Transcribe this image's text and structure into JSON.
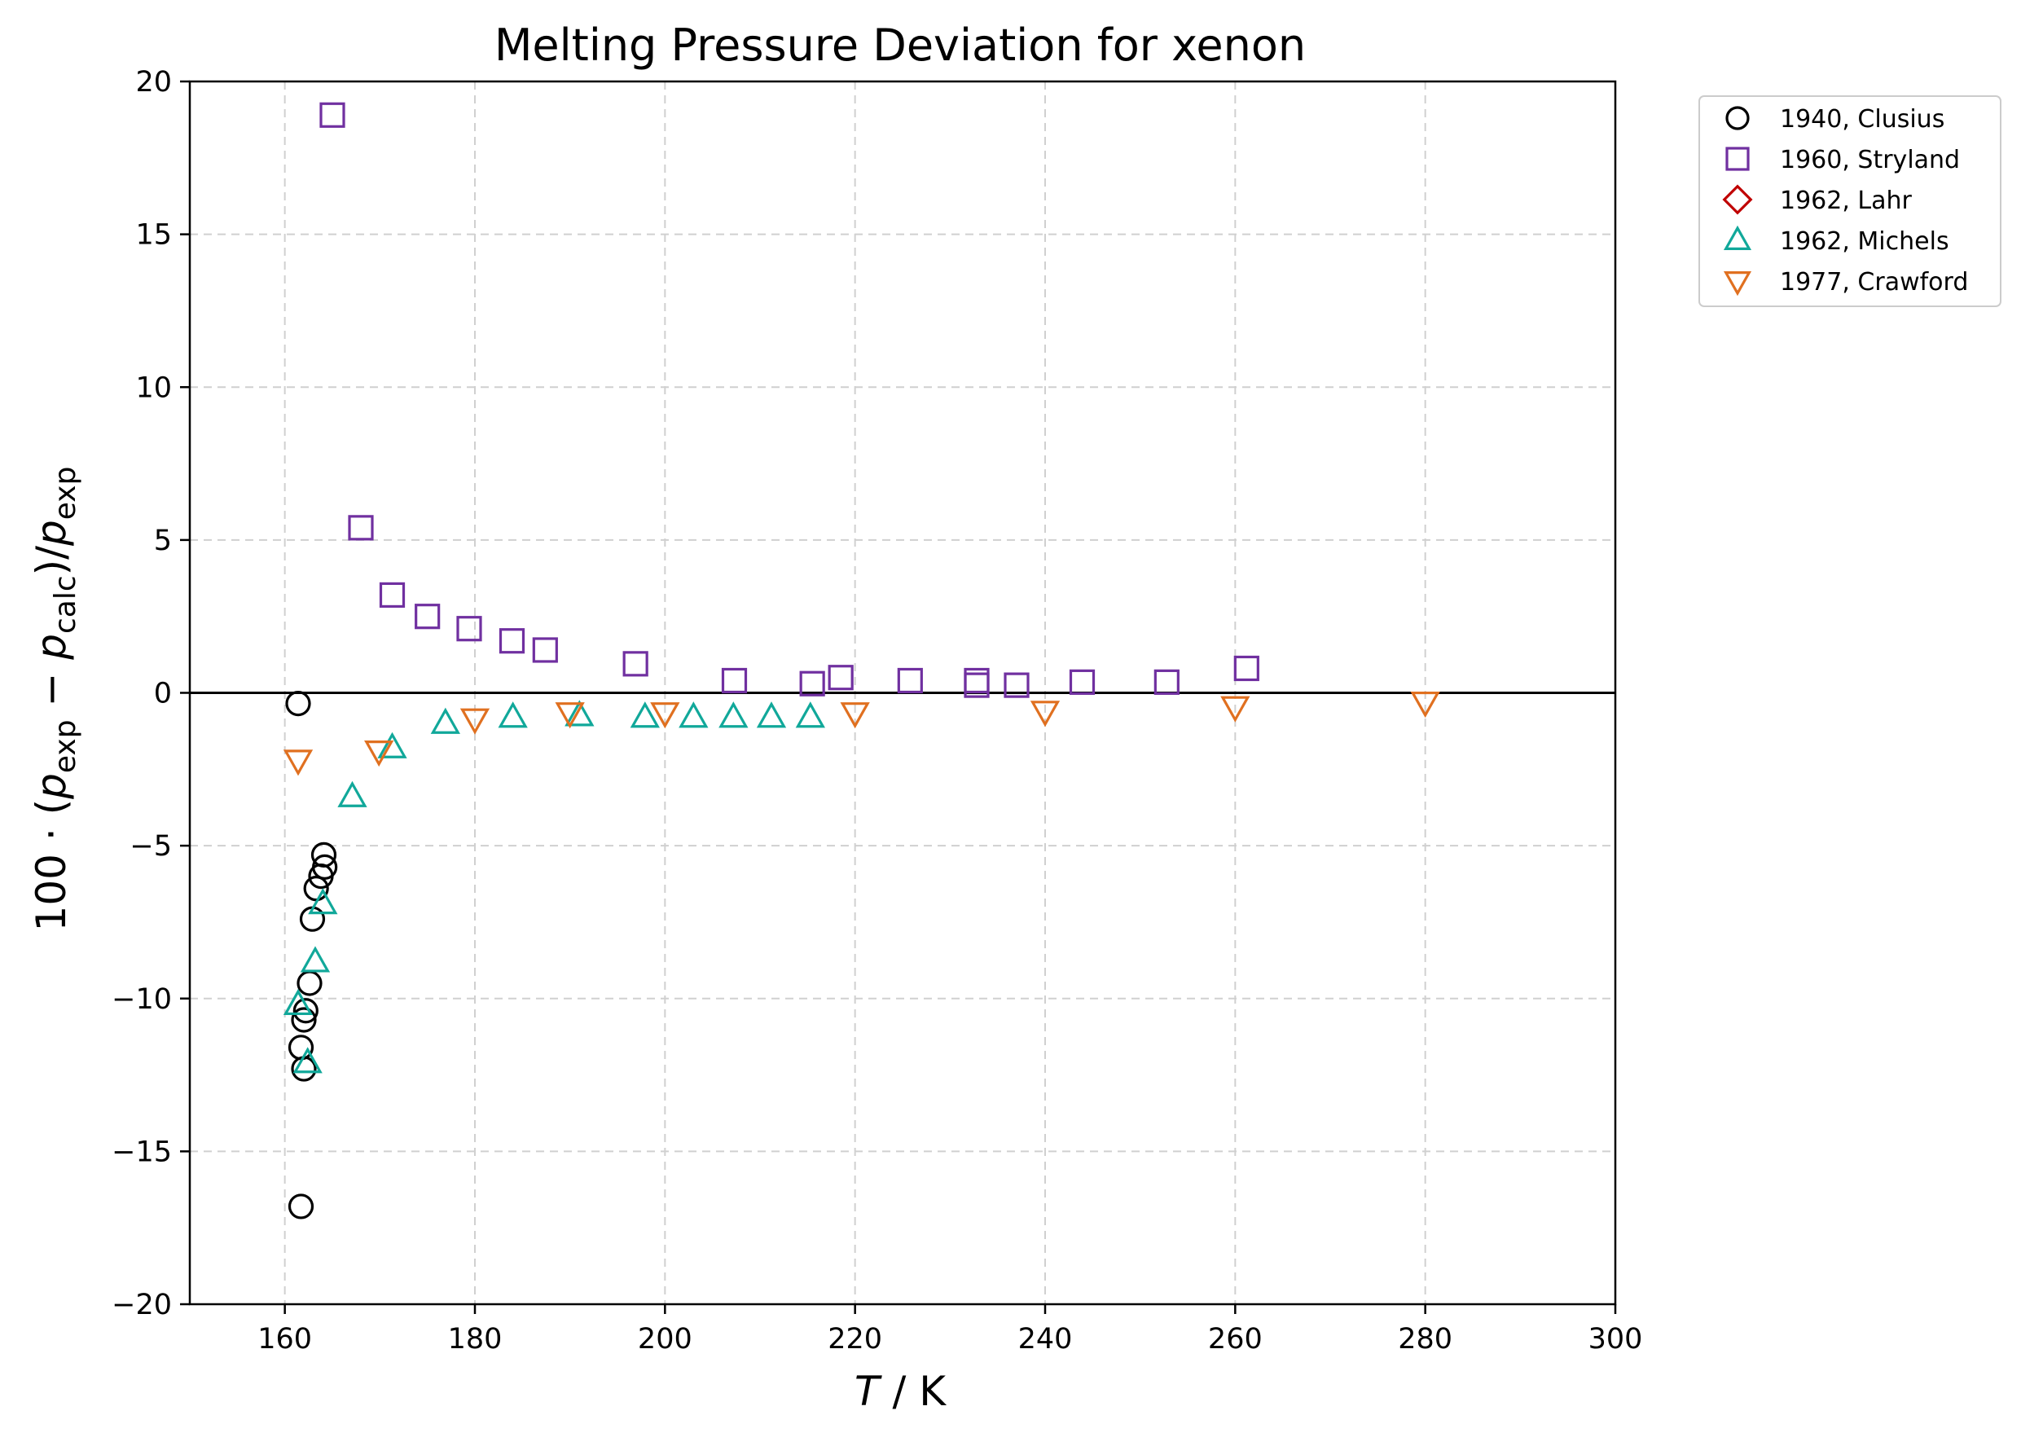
{
  "chart_data": {
    "type": "scatter",
    "title": "Melting Pressure Deviation for xenon",
    "xlabel": "T / K",
    "ylabel": "100 · (p_exp − p_calc)/p_exp",
    "xlim": [
      150,
      300
    ],
    "ylim": [
      -20,
      20
    ],
    "x_ticks": [
      160,
      180,
      200,
      220,
      240,
      260,
      280,
      300
    ],
    "y_ticks": [
      -20,
      -15,
      -10,
      -5,
      0,
      5,
      10,
      15,
      20
    ],
    "y_tick_labels": [
      "−20",
      "−15",
      "−10",
      "−5",
      "0",
      "5",
      "10",
      "15",
      "20"
    ],
    "grid": true,
    "zero_line": true,
    "legend_position": "outside top-right",
    "series": [
      {
        "name": "1940, Clusius",
        "marker": "circle",
        "color": "#000000",
        "points": [
          [
            161.4,
            -0.35
          ],
          [
            164.1,
            -5.3
          ],
          [
            164.2,
            -5.7
          ],
          [
            163.8,
            -6.0
          ],
          [
            163.3,
            -6.4
          ],
          [
            162.9,
            -7.4
          ],
          [
            162.6,
            -9.5
          ],
          [
            162.2,
            -10.4
          ],
          [
            162.0,
            -10.7
          ],
          [
            161.7,
            -11.6
          ],
          [
            162.0,
            -12.3
          ],
          [
            161.7,
            -16.8
          ]
        ]
      },
      {
        "name": "1960, Stryland",
        "marker": "square",
        "color": "#7030a0",
        "points": [
          [
            165.0,
            18.9
          ],
          [
            168.0,
            5.4
          ],
          [
            171.3,
            3.2
          ],
          [
            175.0,
            2.5
          ],
          [
            179.4,
            2.1
          ],
          [
            183.9,
            1.7
          ],
          [
            187.4,
            1.4
          ],
          [
            196.9,
            0.95
          ],
          [
            207.3,
            0.4
          ],
          [
            215.5,
            0.3
          ],
          [
            218.5,
            0.5
          ],
          [
            225.8,
            0.4
          ],
          [
            232.8,
            0.4
          ],
          [
            232.8,
            0.25
          ],
          [
            237.0,
            0.25
          ],
          [
            243.9,
            0.35
          ],
          [
            252.8,
            0.35
          ],
          [
            261.2,
            0.8
          ]
        ]
      },
      {
        "name": "1962, Lahr",
        "marker": "diamond",
        "color": "#c00000",
        "points": []
      },
      {
        "name": "1962, Michels",
        "marker": "triangle-up",
        "color": "#11a89a",
        "points": [
          [
            161.4,
            -10.2
          ],
          [
            162.4,
            -12.1
          ],
          [
            163.2,
            -8.8
          ],
          [
            164.0,
            -6.9
          ],
          [
            167.1,
            -3.4
          ],
          [
            171.3,
            -1.8
          ],
          [
            176.9,
            -1.0
          ],
          [
            184.0,
            -0.8
          ],
          [
            191.0,
            -0.75
          ],
          [
            197.9,
            -0.8
          ],
          [
            203.0,
            -0.8
          ],
          [
            207.2,
            -0.8
          ],
          [
            211.2,
            -0.8
          ],
          [
            215.3,
            -0.8
          ]
        ]
      },
      {
        "name": "1977, Crawford",
        "marker": "triangle-down",
        "color": "#e07020",
        "points": [
          [
            161.4,
            -2.2
          ],
          [
            169.9,
            -1.9
          ],
          [
            180.0,
            -0.85
          ],
          [
            190.0,
            -0.65
          ],
          [
            200.0,
            -0.65
          ],
          [
            220.0,
            -0.65
          ],
          [
            240.0,
            -0.6
          ],
          [
            260.0,
            -0.45
          ],
          [
            280.0,
            -0.3
          ]
        ]
      }
    ]
  }
}
